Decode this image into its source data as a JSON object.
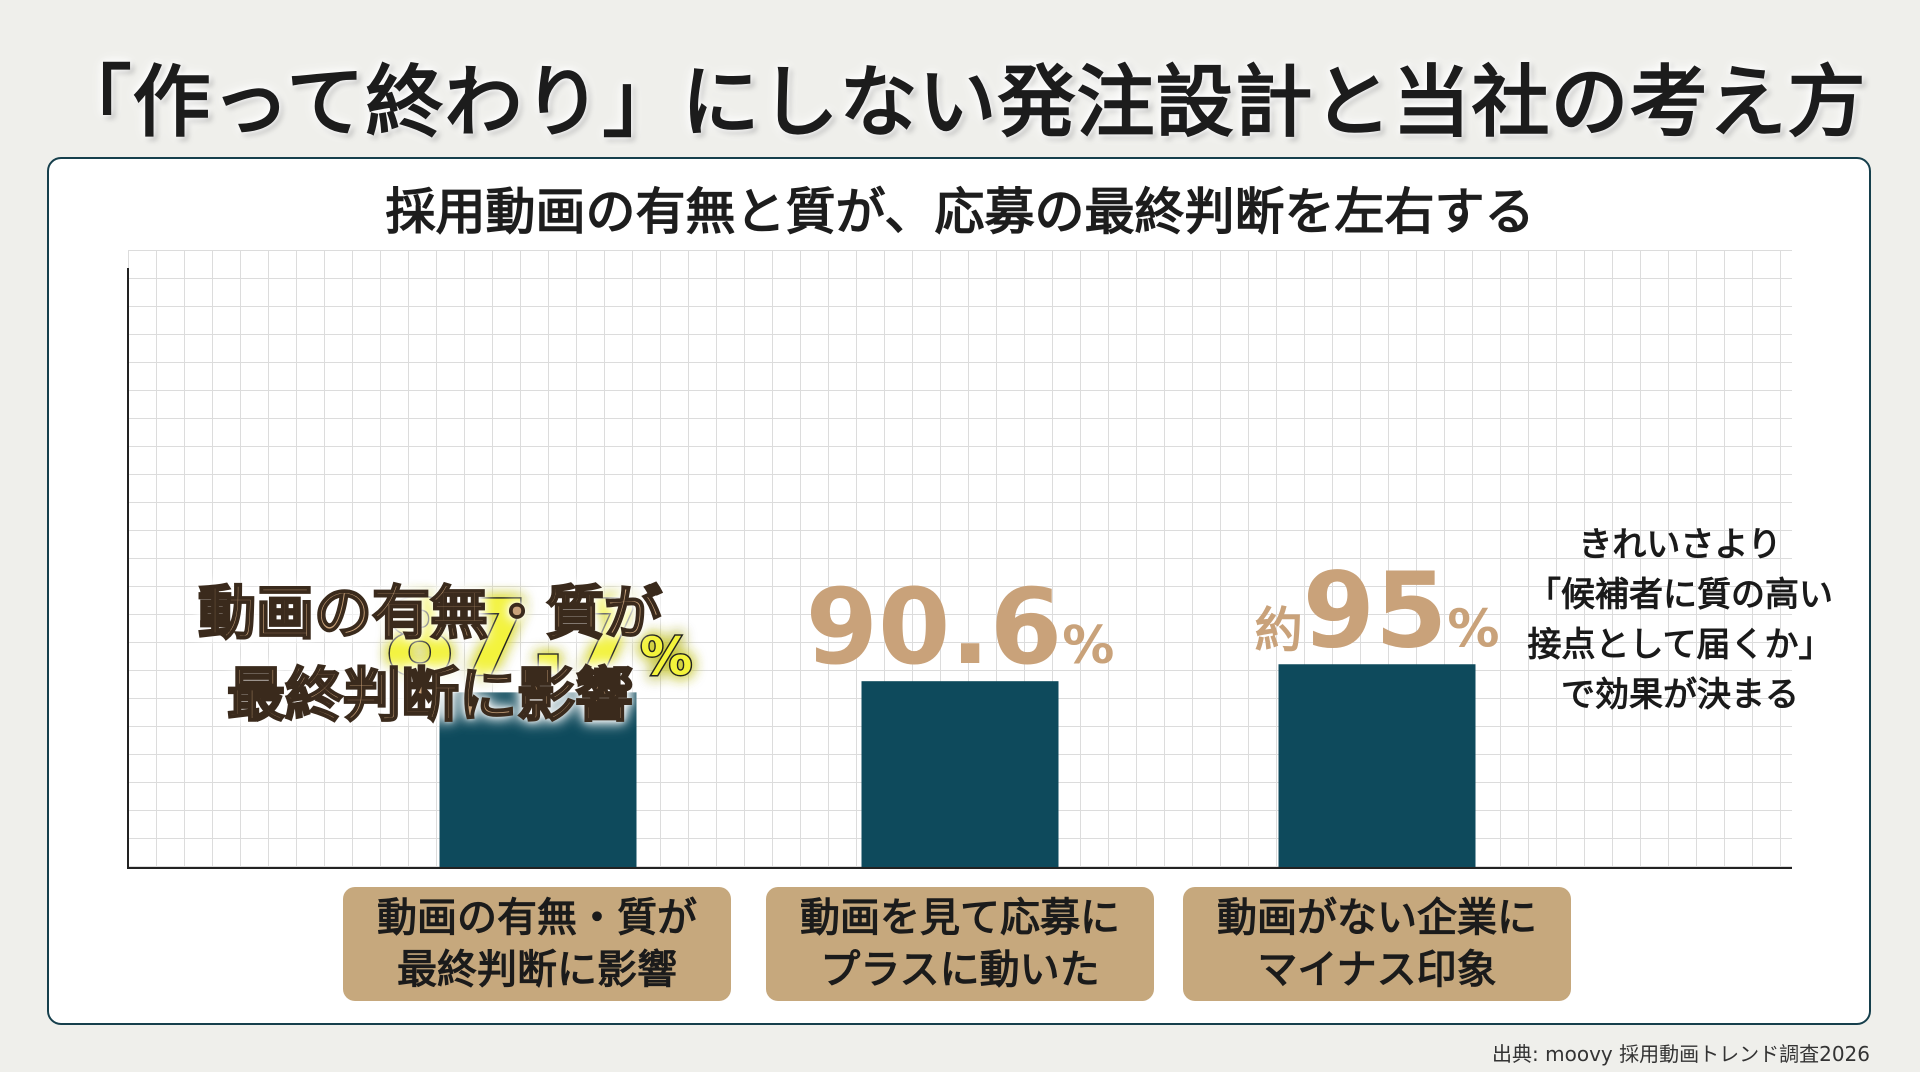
{
  "title": "「作って終わり」にしない発注設計と当社の考え方",
  "panel_title": "採用動画の有無と質が、応募の最終判断を左右する",
  "overlay_text": [
    "動画の有無・質が",
    "最終判断に影響"
  ],
  "side_note": [
    "きれいさより",
    "「候補者に質の高い",
    "接点として届くか」",
    "で効果が決まる"
  ],
  "source": "出典: moovy 採用動画トレンド調査2026",
  "colors": {
    "bar": "#0e4a5c",
    "label_box": "#c6a87d",
    "value_tan": "#c9a27a",
    "value_highlight": "#f3f33a"
  },
  "chart_data": {
    "type": "bar",
    "categories": [
      [
        "動画の有無・質が",
        "最終判断に影響"
      ],
      [
        "動画を見て応募に",
        "プラスに動いた"
      ],
      [
        "動画がない企業に",
        "マイナス印象"
      ]
    ],
    "values": [
      87.7,
      90.6,
      95
    ],
    "value_labels": [
      {
        "prefix": "",
        "number": "87.7",
        "unit": "%",
        "highlight": true
      },
      {
        "prefix": "",
        "number": "90.6",
        "unit": "%",
        "highlight": false
      },
      {
        "prefix": "約",
        "number": "95",
        "unit": "%",
        "highlight": false
      }
    ],
    "grid": true,
    "xlabel": "",
    "ylabel": ""
  }
}
